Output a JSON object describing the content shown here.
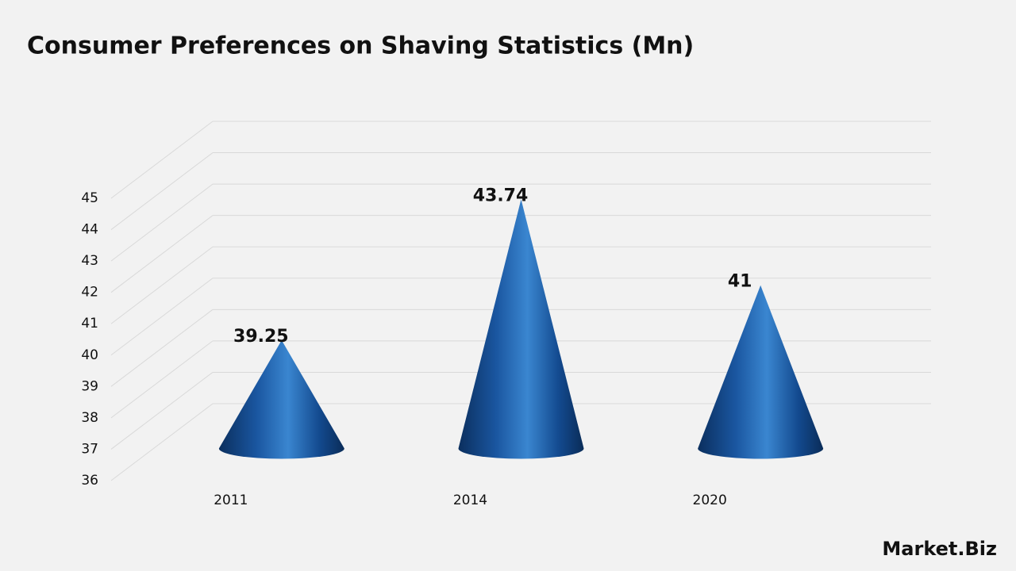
{
  "chart_data": {
    "type": "cone",
    "title": "Consumer Preferences on Shaving Statistics (Mn)",
    "categories": [
      "2011",
      "2014",
      "2020"
    ],
    "values": [
      39.25,
      43.74,
      41
    ],
    "color": "#1f5fa8",
    "ylim": [
      36,
      45
    ],
    "yticks": [
      36,
      37,
      38,
      39,
      40,
      41,
      42,
      43,
      44,
      45
    ],
    "grid": true
  },
  "brand": "Market.Biz"
}
